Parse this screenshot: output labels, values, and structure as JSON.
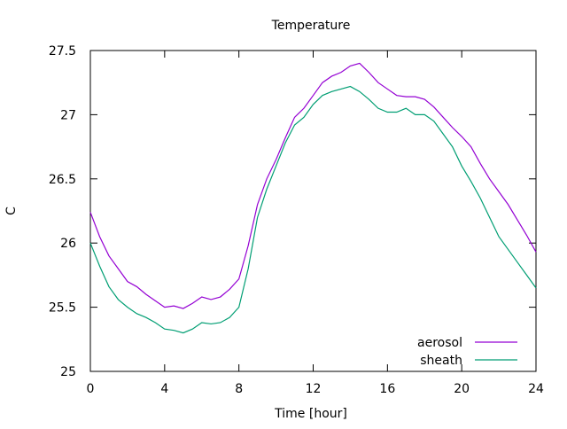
{
  "chart_data": {
    "type": "line",
    "title": "Temperature",
    "xlabel": "Time [hour]",
    "ylabel": "C",
    "xlim": [
      0,
      24
    ],
    "ylim": [
      25,
      27.5
    ],
    "xticks": [
      0,
      4,
      8,
      12,
      16,
      20,
      24
    ],
    "yticks": [
      25,
      25.5,
      26,
      26.5,
      27,
      27.5
    ],
    "ytick_labels": [
      "25",
      "25.5",
      "26",
      "26.5",
      "27",
      "27.5"
    ],
    "grid": false,
    "legend_position": "bottom-right",
    "series": [
      {
        "name": "aerosol",
        "color": "#9400d3",
        "x": [
          0,
          0.5,
          1,
          1.5,
          2,
          2.5,
          3,
          3.5,
          4,
          4.5,
          5,
          5.5,
          6,
          6.5,
          7,
          7.5,
          8,
          8.5,
          9,
          9.5,
          10,
          10.5,
          11,
          11.5,
          12,
          12.5,
          13,
          13.5,
          14,
          14.5,
          15,
          15.5,
          16,
          16.5,
          17,
          17.5,
          18,
          18.5,
          19,
          19.5,
          20,
          20.5,
          21,
          21.5,
          22,
          22.5,
          23,
          23.5,
          24
        ],
        "values": [
          26.24,
          26.05,
          25.9,
          25.8,
          25.7,
          25.66,
          25.6,
          25.55,
          25.5,
          25.51,
          25.49,
          25.53,
          25.58,
          25.56,
          25.58,
          25.64,
          25.72,
          25.98,
          26.3,
          26.5,
          26.65,
          26.82,
          26.98,
          27.05,
          27.15,
          27.25,
          27.3,
          27.33,
          27.38,
          27.4,
          27.33,
          27.25,
          27.2,
          27.15,
          27.14,
          27.14,
          27.12,
          27.06,
          26.98,
          26.9,
          26.83,
          26.75,
          26.62,
          26.5,
          26.4,
          26.3,
          26.18,
          26.06,
          25.93
        ]
      },
      {
        "name": "sheath",
        "color": "#009e73",
        "x": [
          0,
          0.5,
          1,
          1.5,
          2,
          2.5,
          3,
          3.5,
          4,
          4.5,
          5,
          5.5,
          6,
          6.5,
          7,
          7.5,
          8,
          8.5,
          9,
          9.5,
          10,
          10.5,
          11,
          11.5,
          12,
          12.5,
          13,
          13.5,
          14,
          14.5,
          15,
          15.5,
          16,
          16.5,
          17,
          17.5,
          18,
          18.5,
          19,
          19.5,
          20,
          20.5,
          21,
          21.5,
          22,
          22.5,
          23,
          23.5,
          24
        ],
        "values": [
          26.0,
          25.82,
          25.66,
          25.56,
          25.5,
          25.45,
          25.42,
          25.38,
          25.33,
          25.32,
          25.3,
          25.33,
          25.38,
          25.37,
          25.38,
          25.42,
          25.5,
          25.8,
          26.2,
          26.42,
          26.6,
          26.78,
          26.92,
          26.98,
          27.08,
          27.15,
          27.18,
          27.2,
          27.22,
          27.18,
          27.12,
          27.05,
          27.02,
          27.02,
          27.05,
          27.0,
          27.0,
          26.95,
          26.85,
          26.75,
          26.6,
          26.48,
          26.35,
          26.2,
          26.05,
          25.95,
          25.85,
          25.75,
          25.65
        ]
      }
    ]
  }
}
